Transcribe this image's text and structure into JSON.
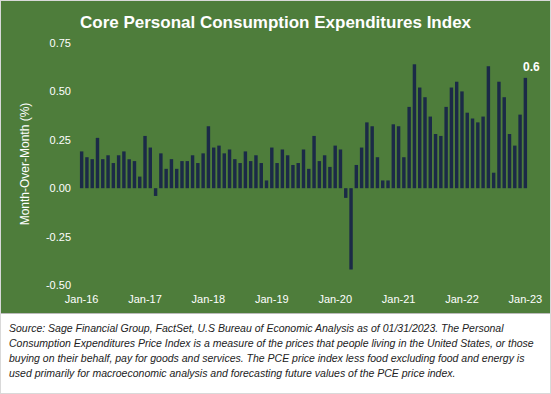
{
  "chart_data": {
    "type": "bar",
    "title": "Core Personal Consumption Expenditures Index",
    "y_label": "Month-Over-Month (%)",
    "annotation": "0.6",
    "footnote": "Source: Sage Financial Group, FactSet, U.S Bureau of Economic Analysis as of 01/31/2023. The Personal Consumption Expenditures Price Index is a measure of the prices that people living in the United States, or those buying on their behalf, pay for goods and services. The PCE price index less food excluding food and energy is used primarily for macroeconomic analysis and forecasting future values of the PCE price index.",
    "categories": [
      "Jan-16",
      null,
      null,
      null,
      null,
      null,
      null,
      null,
      null,
      null,
      null,
      null,
      "Jan-17",
      null,
      null,
      null,
      null,
      null,
      null,
      null,
      null,
      null,
      null,
      null,
      "Jan-18",
      null,
      null,
      null,
      null,
      null,
      null,
      null,
      null,
      null,
      null,
      null,
      "Jan-19",
      null,
      null,
      null,
      null,
      null,
      null,
      null,
      null,
      null,
      null,
      null,
      "Jan-20",
      null,
      null,
      null,
      null,
      null,
      null,
      null,
      null,
      null,
      null,
      null,
      "Jan-21",
      null,
      null,
      null,
      null,
      null,
      null,
      null,
      null,
      null,
      null,
      null,
      "Jan-22",
      null,
      null,
      null,
      null,
      null,
      null,
      null,
      null,
      null,
      null,
      null,
      "Jan-23"
    ],
    "values": [
      0.19,
      0.16,
      0.15,
      0.26,
      0.15,
      0.17,
      0.13,
      0.17,
      0.19,
      0.15,
      0.14,
      0.06,
      0.27,
      0.21,
      -0.04,
      0.18,
      0.1,
      0.15,
      0.1,
      0.14,
      0.14,
      0.17,
      0.13,
      0.18,
      0.32,
      0.21,
      0.22,
      0.18,
      0.2,
      0.15,
      0.13,
      0.19,
      0.14,
      0.17,
      0.13,
      0.04,
      0.21,
      0.13,
      0.2,
      0.17,
      0.12,
      0.13,
      0.2,
      0.1,
      0.27,
      0.14,
      0.17,
      0.11,
      0.22,
      0.2,
      -0.05,
      -0.42,
      0.12,
      0.21,
      0.34,
      0.32,
      0.16,
      0.04,
      0.04,
      0.33,
      0.32,
      0.16,
      0.42,
      0.64,
      0.52,
      0.47,
      0.37,
      0.28,
      0.27,
      0.42,
      0.52,
      0.55,
      0.5,
      0.39,
      0.36,
      0.34,
      0.37,
      0.63,
      0.08,
      0.55,
      0.47,
      0.28,
      0.22,
      0.38,
      0.57
    ],
    "color": "#1b2a47",
    "ylim": [
      -0.5,
      0.75
    ],
    "yticks": [
      {
        "value": -0.5,
        "label": "-0.50"
      },
      {
        "value": -0.25,
        "label": "-0.25"
      },
      {
        "value": 0,
        "label": "0.00"
      },
      {
        "value": 0.25,
        "label": "0.25"
      },
      {
        "value": 0.5,
        "label": "0.50"
      },
      {
        "value": 0.75,
        "label": "0.75"
      }
    ],
    "grid": false
  }
}
